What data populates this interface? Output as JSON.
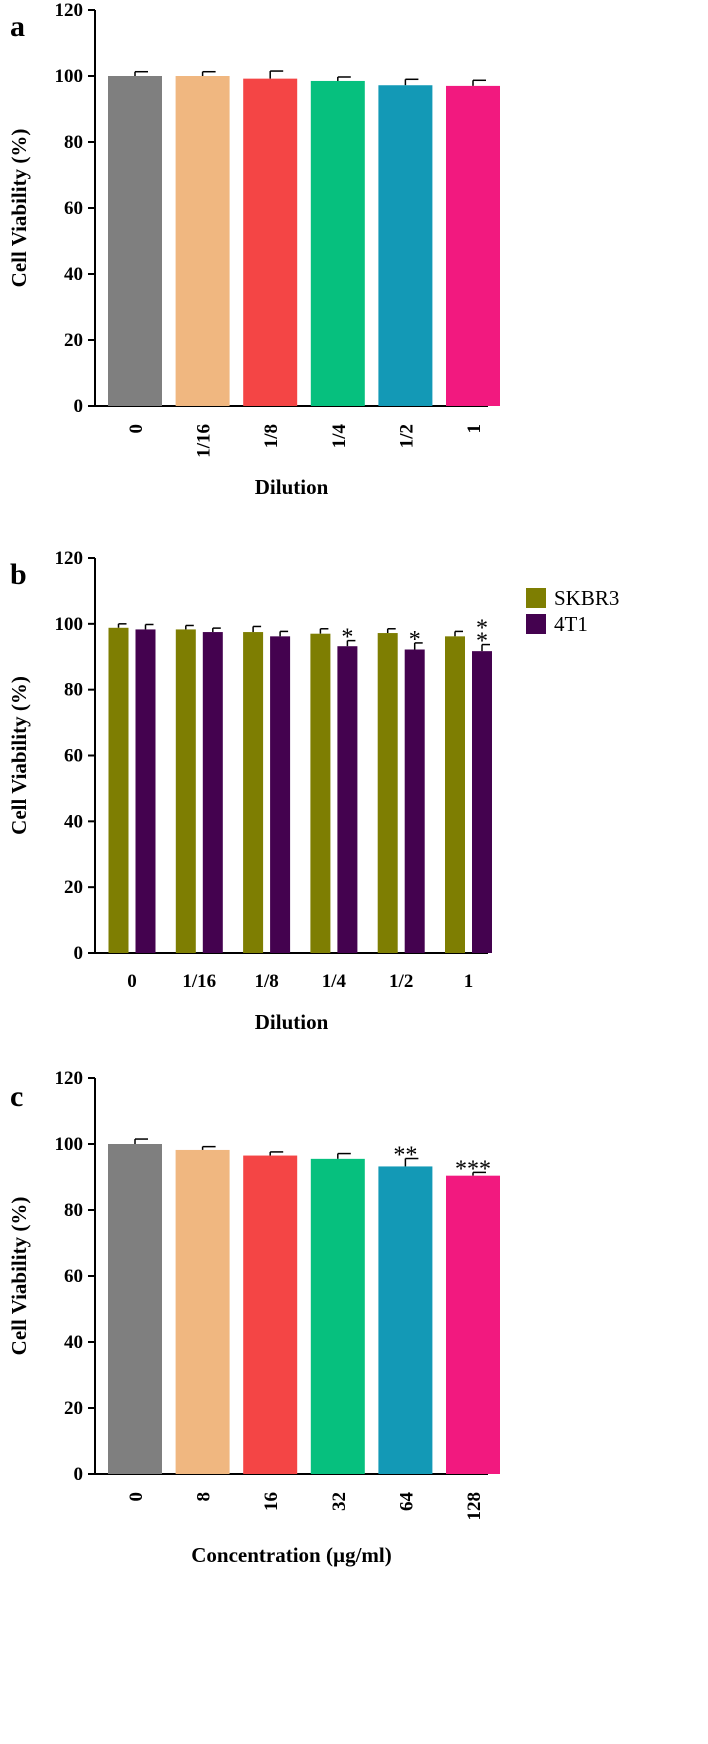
{
  "chart_data": [
    {
      "panel": "a",
      "type": "bar",
      "xlabel": "Dilution",
      "ylabel": "Cell Viability (%)",
      "ylim": [
        0,
        120
      ],
      "yticks": [
        "0",
        "20",
        "40",
        "60",
        "80",
        "100",
        "120"
      ],
      "categories": [
        "0",
        "1/16",
        "1/8",
        "1/4",
        "1/2",
        "1"
      ],
      "values": [
        100,
        100,
        99.2,
        98.5,
        97.2,
        97
      ],
      "errors": [
        1.3,
        1.3,
        2.3,
        1.2,
        1.8,
        1.7
      ],
      "colors": [
        "#7f7f7f",
        "#f0b780",
        "#f44545",
        "#06c07e",
        "#1399b6",
        "#f2197f"
      ],
      "annotations": [
        "",
        "",
        "",
        "",
        "",
        ""
      ],
      "tick_rotation": -90,
      "grid": false
    },
    {
      "panel": "b",
      "type": "bar",
      "xlabel": "Dilution",
      "ylabel": "Cell Viability (%)",
      "ylim": [
        0,
        120
      ],
      "yticks": [
        "0",
        "20",
        "40",
        "60",
        "80",
        "100",
        "120"
      ],
      "categories": [
        "0",
        "1/16",
        "1/8",
        "1/4",
        "1/2",
        "1"
      ],
      "series": [
        {
          "name": "SKBR3",
          "color": "#7e7e02",
          "values": [
            98.8,
            98.3,
            97.5,
            97,
            97.2,
            96.2
          ],
          "errors": [
            1.2,
            1.2,
            1.7,
            1.5,
            1.3,
            1.5
          ],
          "annotations": [
            "",
            "",
            "",
            "",
            "",
            ""
          ]
        },
        {
          "name": "4T1",
          "color": "#44024f",
          "values": [
            98.3,
            97.5,
            96.2,
            93.2,
            92.2,
            91.7
          ],
          "errors": [
            1.5,
            1.2,
            1.5,
            1.7,
            2,
            2
          ],
          "annotations": [
            "",
            "",
            "",
            "*",
            "*",
            "*\n*"
          ]
        }
      ],
      "legend_position": "top-right",
      "tick_rotation": 0,
      "grid": false
    },
    {
      "panel": "c",
      "type": "bar",
      "xlabel": "Concentration (µg/ml)",
      "ylabel": "Cell Viability (%)",
      "ylim": [
        0,
        120
      ],
      "yticks": [
        "0",
        "20",
        "40",
        "60",
        "80",
        "100",
        "120"
      ],
      "categories": [
        "0",
        "8",
        "16",
        "32",
        "64",
        "128"
      ],
      "values": [
        100,
        98.2,
        96.5,
        95.5,
        93.2,
        90.4
      ],
      "errors": [
        1.5,
        1,
        1.1,
        1.6,
        2.4,
        1
      ],
      "colors": [
        "#7f7f7f",
        "#f0b780",
        "#f44545",
        "#06c07e",
        "#1399b6",
        "#f2197f"
      ],
      "annotations": [
        "",
        "",
        "",
        "",
        "**",
        "***"
      ],
      "tick_rotation": -90,
      "grid": false
    }
  ]
}
